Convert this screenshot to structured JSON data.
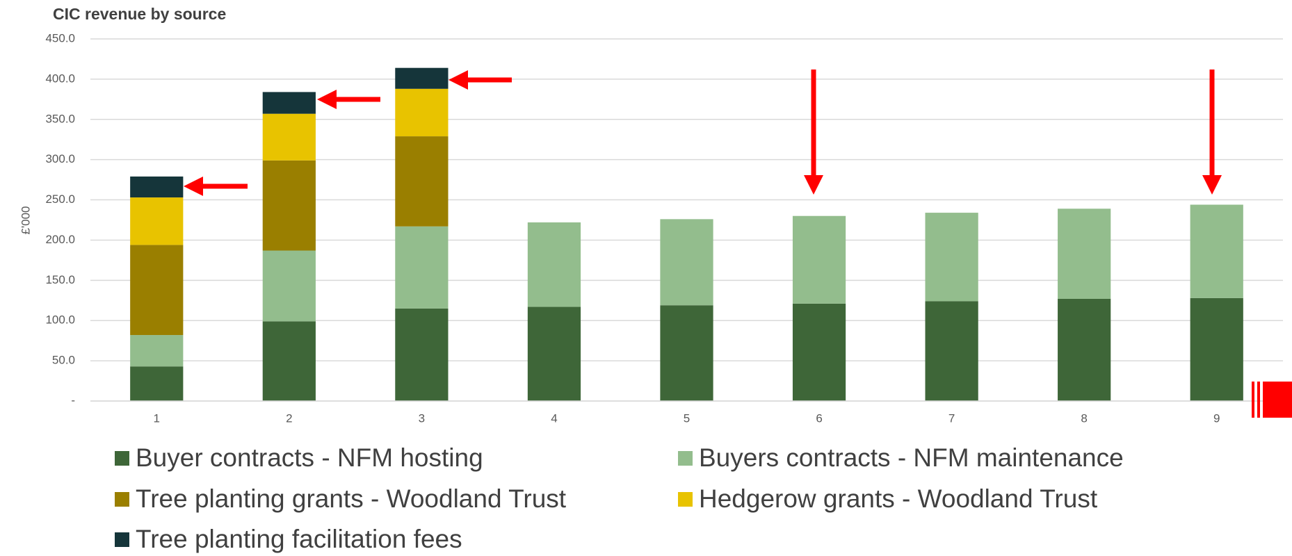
{
  "chart_data": {
    "type": "stacked_bar",
    "title": "CIC revenue by source",
    "y_label": "£'000",
    "categories": [
      "1",
      "2",
      "3",
      "4",
      "5",
      "6",
      "7",
      "8",
      "9"
    ],
    "series": [
      {
        "name": "Buyer contracts - NFM hosting",
        "color": "#3e6638",
        "values": [
          43,
          99,
          115,
          117,
          119,
          121,
          124,
          127,
          128
        ]
      },
      {
        "name": "Buyers contracts - NFM maintenance",
        "color": "#93bd8d",
        "values": [
          39,
          88,
          102,
          105,
          107,
          109,
          110,
          112,
          116
        ]
      },
      {
        "name": "Tree planting grants - Woodland Trust",
        "color": "#9a7f00",
        "values": [
          112,
          112,
          112,
          null,
          null,
          null,
          null,
          null,
          null
        ]
      },
      {
        "name": "Hedgerow grants - Woodland Trust",
        "color": "#e8c300",
        "values": [
          59,
          58,
          59,
          null,
          null,
          null,
          null,
          null,
          null
        ]
      },
      {
        "name": "Tree planting facilitation fees",
        "color": "#15353a",
        "values": [
          26,
          27,
          26,
          null,
          null,
          null,
          null,
          null,
          null
        ]
      }
    ],
    "ylim": [
      0,
      450
    ],
    "yticks": [
      {
        "value": 0,
        "label": "-"
      },
      {
        "value": 50,
        "label": "50.0"
      },
      {
        "value": 100,
        "label": "100.0"
      },
      {
        "value": 150,
        "label": "150.0"
      },
      {
        "value": 200,
        "label": "200.0"
      },
      {
        "value": 250,
        "label": "250.0"
      },
      {
        "value": 300,
        "label": "300.0"
      },
      {
        "value": 350,
        "label": "350.0"
      },
      {
        "value": 400,
        "label": "400.0"
      },
      {
        "value": 450,
        "label": "450.0"
      }
    ],
    "grid": true
  }
}
